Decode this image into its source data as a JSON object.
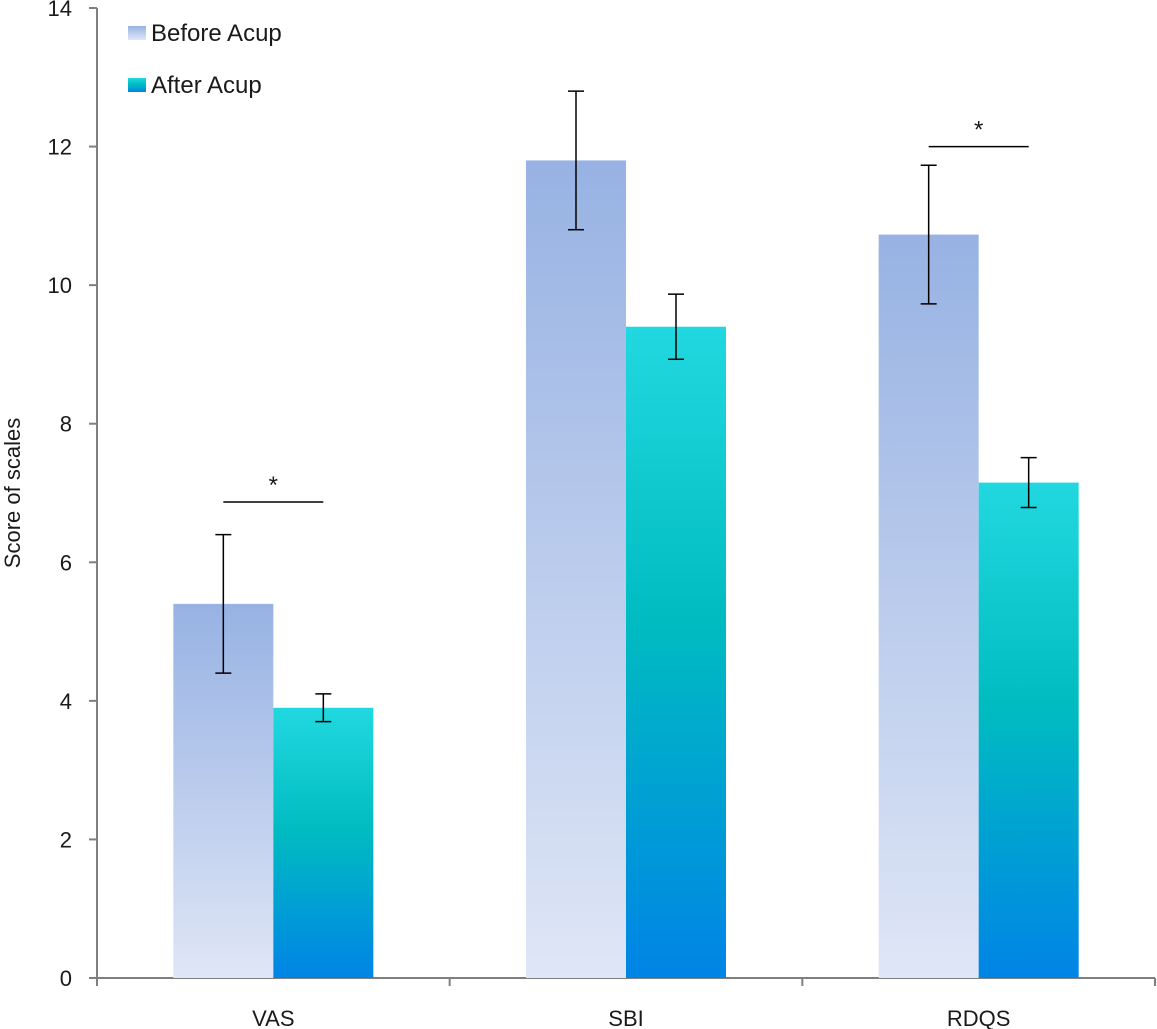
{
  "chart_data": {
    "type": "bar",
    "title": "",
    "xlabel": "",
    "ylabel": "Score of scales",
    "ylim": [
      0,
      14
    ],
    "yticks": [
      0,
      2,
      4,
      6,
      8,
      10,
      12,
      14
    ],
    "categories": [
      "VAS",
      "SBI",
      "RDQS"
    ],
    "grid": false,
    "legend_position": "top-left",
    "series": [
      {
        "name": "Before Acup",
        "values": [
          5.4,
          11.8,
          10.73
        ],
        "error": [
          1.0,
          1.0,
          1.0
        ],
        "color_top": "#97b2e3",
        "color_bottom": "#dfe6f6"
      },
      {
        "name": "After Acup",
        "values": [
          3.9,
          9.4,
          7.15
        ],
        "error": [
          0.2,
          0.47,
          0.36
        ],
        "color_top": "#22d8e0",
        "color_middle": "#00bcc0",
        "color_bottom": "#0084e6"
      }
    ],
    "annotations": [
      {
        "category": "VAS",
        "text": "*",
        "value": 6.87
      },
      {
        "category": "RDQS",
        "text": "*",
        "value": 12.0
      }
    ]
  }
}
